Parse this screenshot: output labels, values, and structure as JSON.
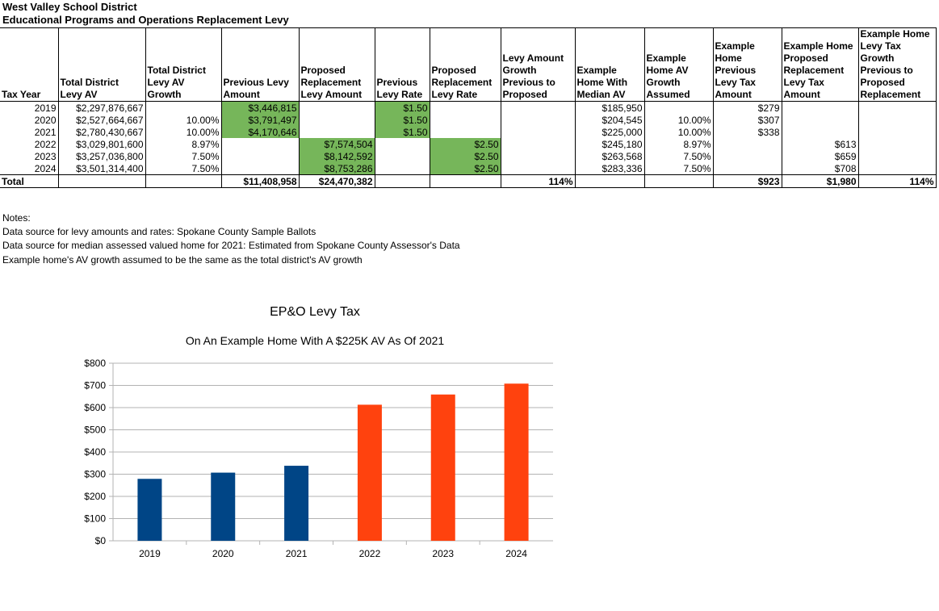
{
  "header": {
    "line1": "West Valley School District",
    "line2": "Educational Programs and Operations Replacement Levy"
  },
  "table": {
    "columns": [
      "Tax Year",
      "Total District Levy AV",
      "Total District Levy AV Growth",
      "Previous Levy Amount",
      "Proposed Replacement Levy Amount",
      "Previous Levy Rate",
      "Proposed Replacement Levy Rate",
      "Levy Amount Growth Previous to Proposed",
      "Example Home With Median AV",
      "Example Home AV Growth Assumed",
      "Example Home Previous Levy Tax Amount",
      "Example Home Proposed Replacement Levy Tax Amount",
      "Example Home Levy Tax Growth Previous to Proposed Replacement"
    ],
    "rows": [
      [
        "2019",
        "$2,297,876,667",
        "",
        "$3,446,815",
        "",
        "$1.50",
        "",
        "",
        "$185,950",
        "",
        "$279",
        "",
        ""
      ],
      [
        "2020",
        "$2,527,664,667",
        "10.00%",
        "$3,791,497",
        "",
        "$1.50",
        "",
        "",
        "$204,545",
        "10.00%",
        "$307",
        "",
        ""
      ],
      [
        "2021",
        "$2,780,430,667",
        "10.00%",
        "$4,170,646",
        "",
        "$1.50",
        "",
        "",
        "$225,000",
        "10.00%",
        "$338",
        "",
        ""
      ],
      [
        "2022",
        "$3,029,801,600",
        "8.97%",
        "",
        "$7,574,504",
        "",
        "$2.50",
        "",
        "$245,180",
        "8.97%",
        "",
        "$613",
        ""
      ],
      [
        "2023",
        "$3,257,036,800",
        "7.50%",
        "",
        "$8,142,592",
        "",
        "$2.50",
        "",
        "$263,568",
        "7.50%",
        "",
        "$659",
        ""
      ],
      [
        "2024",
        "$3,501,314,400",
        "7.50%",
        "",
        "$8,753,286",
        "",
        "$2.50",
        "",
        "$283,336",
        "7.50%",
        "",
        "$708",
        ""
      ]
    ],
    "total_row": [
      "Total",
      "",
      "",
      "$11,408,958",
      "$24,470,382",
      "",
      "",
      "114%",
      "",
      "",
      "$923",
      "$1,980",
      "114%"
    ],
    "highlight_color": "#76b65a"
  },
  "notes": {
    "heading": "Notes:",
    "lines": [
      "Data source for levy amounts and rates: Spokane County Sample Ballots",
      "Data source for median assessed valued home for 2021: Estimated from Spokane County Assessor's Data",
      "Example home's AV growth assumed to be the same as the total district's AV growth"
    ]
  },
  "chart_data": {
    "type": "bar",
    "title": "EP&O Levy Tax",
    "subtitle": "On An Example Home With A $225K AV As Of 2021",
    "categories": [
      "2019",
      "2020",
      "2021",
      "2022",
      "2023",
      "2024"
    ],
    "values": [
      279,
      307,
      338,
      613,
      659,
      708
    ],
    "bar_colors": [
      "#004586",
      "#004586",
      "#004586",
      "#ff420e",
      "#ff420e",
      "#ff420e"
    ],
    "ylim": [
      0,
      800
    ],
    "yticks": [
      0,
      100,
      200,
      300,
      400,
      500,
      600,
      700,
      800
    ],
    "ytick_labels": [
      "$0",
      "$100",
      "$200",
      "$300",
      "$400",
      "$500",
      "$600",
      "$700",
      "$800"
    ],
    "grid": true,
    "xlabel": "",
    "ylabel": ""
  }
}
